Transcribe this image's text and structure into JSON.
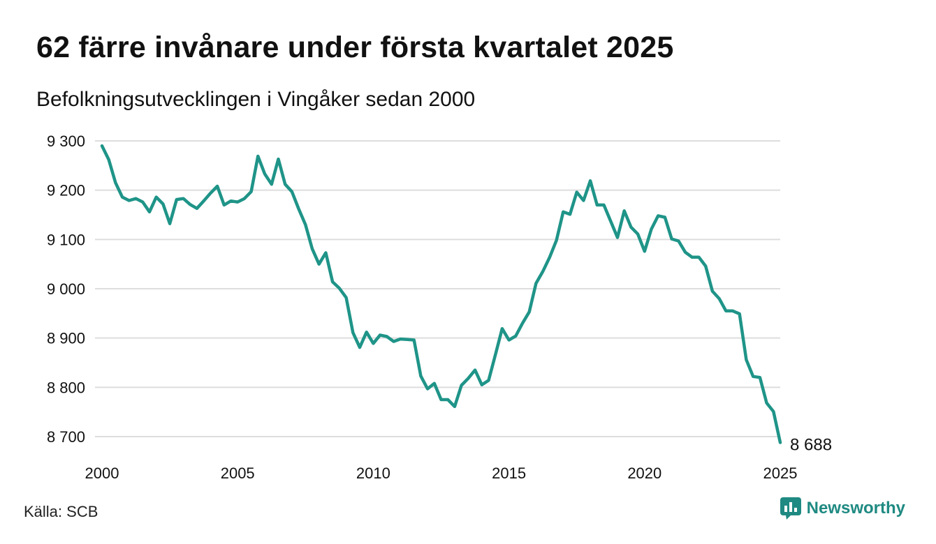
{
  "header": {
    "title": "62 färre invånare under första kvartalet 2025",
    "subtitle": "Befolkningsutvecklingen i Vingåker sedan 2000"
  },
  "footer": {
    "source": "Källa: SCB",
    "brand": "Newsworthy",
    "brand_icon": "chart-logo-icon"
  },
  "colors": {
    "line": "#1f9488",
    "grid": "#dddddd",
    "brand": "#1f8a82"
  },
  "chart_data": {
    "type": "line",
    "title": "62 färre invånare under första kvartalet 2025",
    "subtitle": "Befolkningsutvecklingen i Vingåker sedan 2000",
    "xlabel": "",
    "ylabel": "",
    "xlim": [
      2000,
      2025
    ],
    "ylim": [
      8700,
      9300
    ],
    "x_ticks": [
      2000,
      2005,
      2010,
      2015,
      2020,
      2025
    ],
    "x_tick_labels": [
      "2000",
      "2005",
      "2010",
      "2015",
      "2020",
      "2025"
    ],
    "y_ticks": [
      8700,
      8800,
      8900,
      9000,
      9100,
      9200,
      9300
    ],
    "y_tick_labels": [
      "8 700",
      "8 800",
      "8 900",
      "9 000",
      "9 100",
      "9 200",
      "9 300"
    ],
    "grid": true,
    "end_label": "8 688",
    "series": [
      {
        "x": [
          2000.0,
          2000.25,
          2000.5,
          2000.75,
          2001.0,
          2001.25,
          2001.5,
          2001.75,
          2002.0,
          2002.25,
          2002.5,
          2002.75,
          2003.0,
          2003.25,
          2003.5,
          2003.75,
          2004.0,
          2004.25,
          2004.5,
          2004.75,
          2005.0,
          2005.25,
          2005.5,
          2005.75,
          2006.0,
          2006.25,
          2006.5,
          2006.75,
          2007.0,
          2007.25,
          2007.5,
          2007.75,
          2008.0,
          2008.25,
          2008.5,
          2008.75,
          2009.0,
          2009.25,
          2009.5,
          2009.75,
          2010.0,
          2010.25,
          2010.5,
          2010.75,
          2011.0,
          2011.25,
          2011.5,
          2011.75,
          2012.0,
          2012.25,
          2012.5,
          2012.75,
          2013.0,
          2013.25,
          2013.5,
          2013.75,
          2014.0,
          2014.25,
          2014.5,
          2014.75,
          2015.0,
          2015.25,
          2015.5,
          2015.75,
          2016.0,
          2016.25,
          2016.5,
          2016.75,
          2017.0,
          2017.25,
          2017.5,
          2017.75,
          2018.0,
          2018.25,
          2018.5,
          2018.75,
          2019.0,
          2019.25,
          2019.5,
          2019.75,
          2020.0,
          2020.25,
          2020.5,
          2020.75,
          2021.0,
          2021.25,
          2021.5,
          2021.75,
          2022.0,
          2022.25,
          2022.5,
          2022.75,
          2023.0,
          2023.25,
          2023.5,
          2023.75,
          2024.0,
          2024.25,
          2024.5,
          2024.75,
          2025.0
        ],
        "values": [
          9290,
          9262,
          9215,
          9186,
          9179,
          9183,
          9176,
          9156,
          9186,
          9172,
          9132,
          9181,
          9183,
          9171,
          9163,
          9178,
          9194,
          9208,
          9170,
          9178,
          9176,
          9183,
          9197,
          9269,
          9233,
          9212,
          9263,
          9212,
          9197,
          9162,
          9130,
          9081,
          9050,
          9073,
          9014,
          9001,
          8982,
          8911,
          8881,
          8912,
          8889,
          8906,
          8903,
          8893,
          8898,
          8897,
          8896,
          8823,
          8797,
          8808,
          8775,
          8775,
          8761,
          8804,
          8818,
          8835,
          8805,
          8814,
          8866,
          8919,
          8896,
          8904,
          8930,
          8953,
          9011,
          9035,
          9064,
          9098,
          9156,
          9151,
          9196,
          9179,
          9219,
          9170,
          9170,
          9137,
          9104,
          9158,
          9125,
          9111,
          9076,
          9121,
          9148,
          9145,
          9101,
          9097,
          9074,
          9064,
          9064,
          9046,
          8995,
          8980,
          8955,
          8955,
          8949,
          8856,
          8822,
          8820,
          8768,
          8751,
          8688
        ]
      }
    ]
  }
}
